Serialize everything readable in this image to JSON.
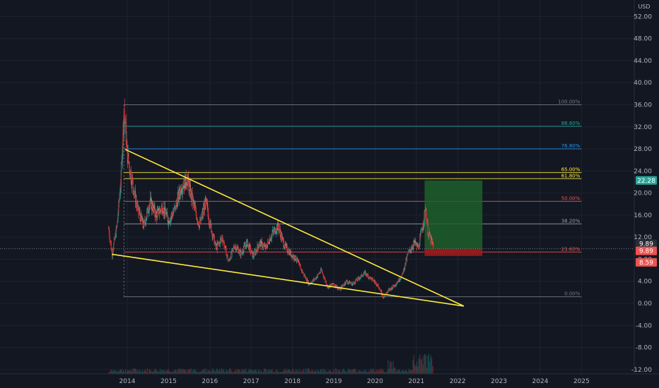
{
  "chart_data": {
    "type": "candlestick",
    "currency": "USD",
    "colors": {
      "background": "#131722",
      "grid": "#1f2330",
      "up": "#26a69a",
      "down": "#ef5350",
      "trendline": "#ffeb3b",
      "target_zone": "#1f5f2a",
      "stop_zone": "#9b1c1c"
    },
    "y_ticks": [
      "52.00",
      "48.00",
      "44.00",
      "40.00",
      "36.00",
      "32.00",
      "28.00",
      "24.00",
      "20.00",
      "16.00",
      "12.00",
      "8.00",
      "4.00",
      "0.00",
      "-4.00",
      "-8.00",
      "-12.00"
    ],
    "y_tick_values": [
      52,
      48,
      44,
      40,
      36,
      32,
      28,
      24,
      20,
      16,
      12,
      8,
      4,
      0,
      -4,
      -8,
      -12
    ],
    "x_ticks": [
      "2014",
      "2015",
      "2016",
      "2017",
      "2018",
      "2019",
      "2020",
      "2021",
      "2022",
      "2023",
      "2024",
      "2025"
    ],
    "x_tick_values": [
      2014,
      2015,
      2016,
      2017,
      2018,
      2019,
      2020,
      2021,
      2022,
      2023,
      2024,
      2025
    ],
    "price_badges": [
      {
        "label": "22.28",
        "value": 22.28,
        "color": "#26a69a"
      },
      {
        "label": "9.89",
        "value": 9.89,
        "color": "#2a2e39"
      },
      {
        "label": "9.89",
        "value": 9.89,
        "color": "#ef5350"
      },
      {
        "label": "8.59",
        "value": 8.59,
        "color": "#ef5350"
      }
    ],
    "fib_levels": [
      {
        "label": "100.00%",
        "value": 36.0,
        "color": "#787b86"
      },
      {
        "label": "88.60%",
        "value": 32.1,
        "color": "#26a69a"
      },
      {
        "label": "76.80%",
        "value": 28.0,
        "color": "#2196f3"
      },
      {
        "label": "65.00%",
        "value": 23.7,
        "color": "#ffeb3b"
      },
      {
        "label": "61.80%",
        "value": 22.6,
        "color": "#ffeb3b"
      },
      {
        "label": "50.00%",
        "value": 18.5,
        "color": "#ef5350"
      },
      {
        "label": "38.20%",
        "value": 14.4,
        "color": "#9e9e9e"
      },
      {
        "label": "23.60%",
        "value": 9.3,
        "color": "#ef5350"
      },
      {
        "label": "0.00%",
        "value": 1.2,
        "color": "#787b86"
      }
    ],
    "fib_range": {
      "x_start": 2013.92,
      "x_end": 2025.0
    },
    "trendlines": [
      {
        "x1": 2013.95,
        "y1": 27.9,
        "x2": 2022.15,
        "y2": -0.5
      },
      {
        "x1": 2013.63,
        "y1": 8.9,
        "x2": 2022.15,
        "y2": -0.5
      }
    ],
    "position": {
      "x_start": 2021.2,
      "x_end": 2022.6,
      "entry": 9.89,
      "target": 22.28,
      "stop": 8.59
    },
    "price_path": [
      [
        2013.55,
        13.5
      ],
      [
        2013.63,
        8.9
      ],
      [
        2013.75,
        14.0
      ],
      [
        2013.85,
        23.0
      ],
      [
        2013.92,
        35.5
      ],
      [
        2014.0,
        27.0
      ],
      [
        2014.12,
        22.0
      ],
      [
        2014.25,
        17.0
      ],
      [
        2014.4,
        14.0
      ],
      [
        2014.55,
        18.5
      ],
      [
        2014.7,
        16.0
      ],
      [
        2014.85,
        17.5
      ],
      [
        2015.0,
        15.0
      ],
      [
        2015.15,
        17.0
      ],
      [
        2015.3,
        21.0
      ],
      [
        2015.45,
        22.5
      ],
      [
        2015.6,
        18.0
      ],
      [
        2015.75,
        14.0
      ],
      [
        2015.9,
        18.5
      ],
      [
        2016.0,
        14.5
      ],
      [
        2016.15,
        10.0
      ],
      [
        2016.3,
        12.0
      ],
      [
        2016.45,
        7.5
      ],
      [
        2016.6,
        10.5
      ],
      [
        2016.75,
        9.0
      ],
      [
        2016.9,
        11.0
      ],
      [
        2017.05,
        8.5
      ],
      [
        2017.2,
        11.0
      ],
      [
        2017.35,
        10.0
      ],
      [
        2017.5,
        12.5
      ],
      [
        2017.65,
        14.0
      ],
      [
        2017.8,
        10.5
      ],
      [
        2017.95,
        9.0
      ],
      [
        2018.1,
        8.0
      ],
      [
        2018.25,
        5.5
      ],
      [
        2018.4,
        3.5
      ],
      [
        2018.55,
        4.5
      ],
      [
        2018.7,
        6.0
      ],
      [
        2018.85,
        3.0
      ],
      [
        2019.0,
        3.5
      ],
      [
        2019.15,
        2.5
      ],
      [
        2019.3,
        4.0
      ],
      [
        2019.45,
        3.5
      ],
      [
        2019.6,
        4.5
      ],
      [
        2019.75,
        5.5
      ],
      [
        2019.9,
        4.5
      ],
      [
        2020.05,
        3.5
      ],
      [
        2020.2,
        1.2
      ],
      [
        2020.35,
        2.5
      ],
      [
        2020.5,
        3.5
      ],
      [
        2020.65,
        5.0
      ],
      [
        2020.8,
        9.0
      ],
      [
        2020.95,
        11.0
      ],
      [
        2021.05,
        10.0
      ],
      [
        2021.15,
        14.0
      ],
      [
        2021.22,
        17.0
      ],
      [
        2021.28,
        13.0
      ],
      [
        2021.35,
        11.5
      ],
      [
        2021.42,
        9.89
      ]
    ]
  }
}
